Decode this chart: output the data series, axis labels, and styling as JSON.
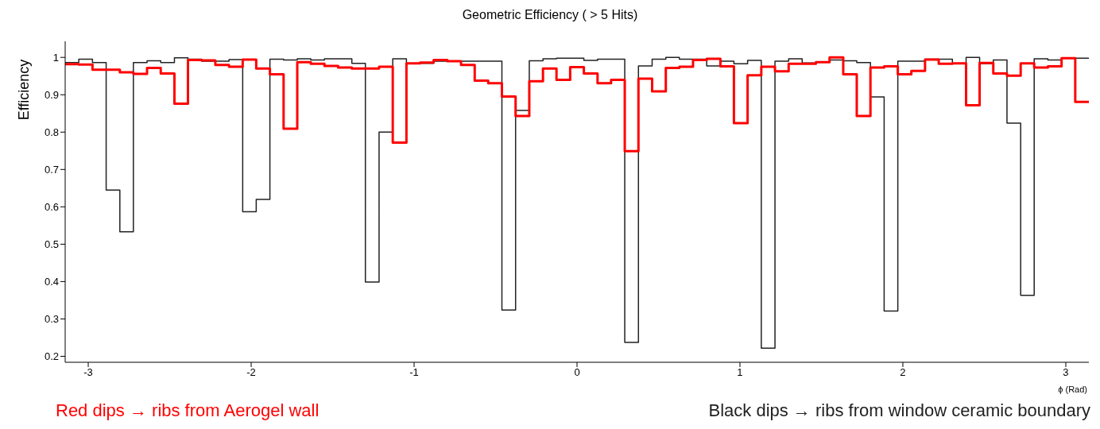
{
  "chart_data": {
    "type": "histogram",
    "title": "Geometric Efficiency ( > 5 Hits)",
    "xlabel": "ϕ (Rad)",
    "ylabel": "Efficiency",
    "annotations": [
      "Red dips → ribs from Aerogel wall",
      "Black dips → ribs from window ceramic boundary"
    ],
    "bins": [
      -3.142,
      -3.058,
      -2.974,
      -2.89,
      -2.806,
      -2.723,
      -2.639,
      -2.555,
      -2.471,
      -2.388,
      -2.304,
      -2.22,
      -2.136,
      -2.052,
      -1.969,
      -1.885,
      -1.801,
      -1.717,
      -1.634,
      -1.55,
      -1.466,
      -1.382,
      -1.299,
      -1.215,
      -1.131,
      -1.047,
      -0.963,
      -0.88,
      -0.796,
      -0.712,
      -0.628,
      -0.545,
      -0.461,
      -0.377,
      -0.293,
      -0.209,
      -0.126,
      -0.042,
      0.042,
      0.126,
      0.209,
      0.293,
      0.377,
      0.461,
      0.545,
      0.628,
      0.712,
      0.796,
      0.88,
      0.963,
      1.047,
      1.131,
      1.215,
      1.299,
      1.382,
      1.466,
      1.55,
      1.634,
      1.717,
      1.801,
      1.885,
      1.969,
      2.052,
      2.136,
      2.22,
      2.304,
      2.388,
      2.471,
      2.555,
      2.639,
      2.723,
      2.806,
      2.89,
      2.974,
      3.058,
      3.142
    ],
    "series": [
      {
        "color": "#222222",
        "values": [
          0.986,
          0.995,
          0.986,
          0.645,
          0.533,
          0.986,
          0.991,
          0.986,
          0.999,
          0.995,
          0.99,
          0.99,
          0.994,
          0.587,
          0.62,
          0.995,
          0.993,
          0.996,
          0.993,
          0.996,
          0.996,
          0.984,
          0.399,
          0.8,
          0.996,
          0.984,
          0.984,
          0.99,
          0.99,
          0.99,
          0.99,
          0.99,
          0.324,
          0.858,
          0.991,
          0.996,
          0.998,
          0.998,
          0.992,
          0.995,
          0.995,
          0.237,
          0.977,
          0.995,
          1.0,
          0.995,
          0.995,
          0.977,
          0.99,
          0.983,
          0.992,
          0.222,
          0.99,
          0.996,
          0.985,
          0.987,
          0.993,
          0.991,
          0.986,
          0.894,
          0.321,
          0.99,
          0.99,
          0.995,
          0.995,
          0.983,
          1.0,
          0.983,
          0.993,
          0.824,
          0.363,
          0.996,
          0.993,
          0.998,
          0.998
        ]
      },
      {
        "color": "#ff0000",
        "values": [
          0.982,
          0.981,
          0.967,
          0.967,
          0.96,
          0.956,
          0.972,
          0.957,
          0.876,
          0.993,
          0.992,
          0.98,
          0.975,
          0.994,
          0.97,
          0.955,
          0.809,
          0.987,
          0.983,
          0.977,
          0.973,
          0.97,
          0.97,
          0.975,
          0.772,
          0.984,
          0.986,
          0.993,
          0.99,
          0.98,
          0.938,
          0.931,
          0.895,
          0.843,
          0.936,
          0.97,
          0.94,
          0.974,
          0.957,
          0.931,
          0.94,
          0.749,
          0.943,
          0.909,
          0.972,
          0.975,
          0.993,
          0.996,
          0.976,
          0.824,
          0.952,
          0.975,
          0.963,
          0.983,
          0.983,
          0.987,
          1.0,
          0.955,
          0.843,
          0.973,
          0.976,
          0.955,
          0.964,
          0.994,
          0.983,
          0.984,
          0.872,
          0.985,
          0.957,
          0.951,
          0.984,
          0.973,
          0.976,
          0.998,
          0.881
        ]
      }
    ],
    "xlim": [
      -3.1416,
      3.1416
    ],
    "ylim": [
      0.184,
      1.043
    ],
    "xticks": [
      -3,
      -2,
      -1,
      0,
      1,
      2,
      3
    ],
    "yticks": [
      0.2,
      0.3,
      0.4,
      0.5,
      0.6,
      0.7,
      0.8,
      0.9,
      1
    ]
  }
}
